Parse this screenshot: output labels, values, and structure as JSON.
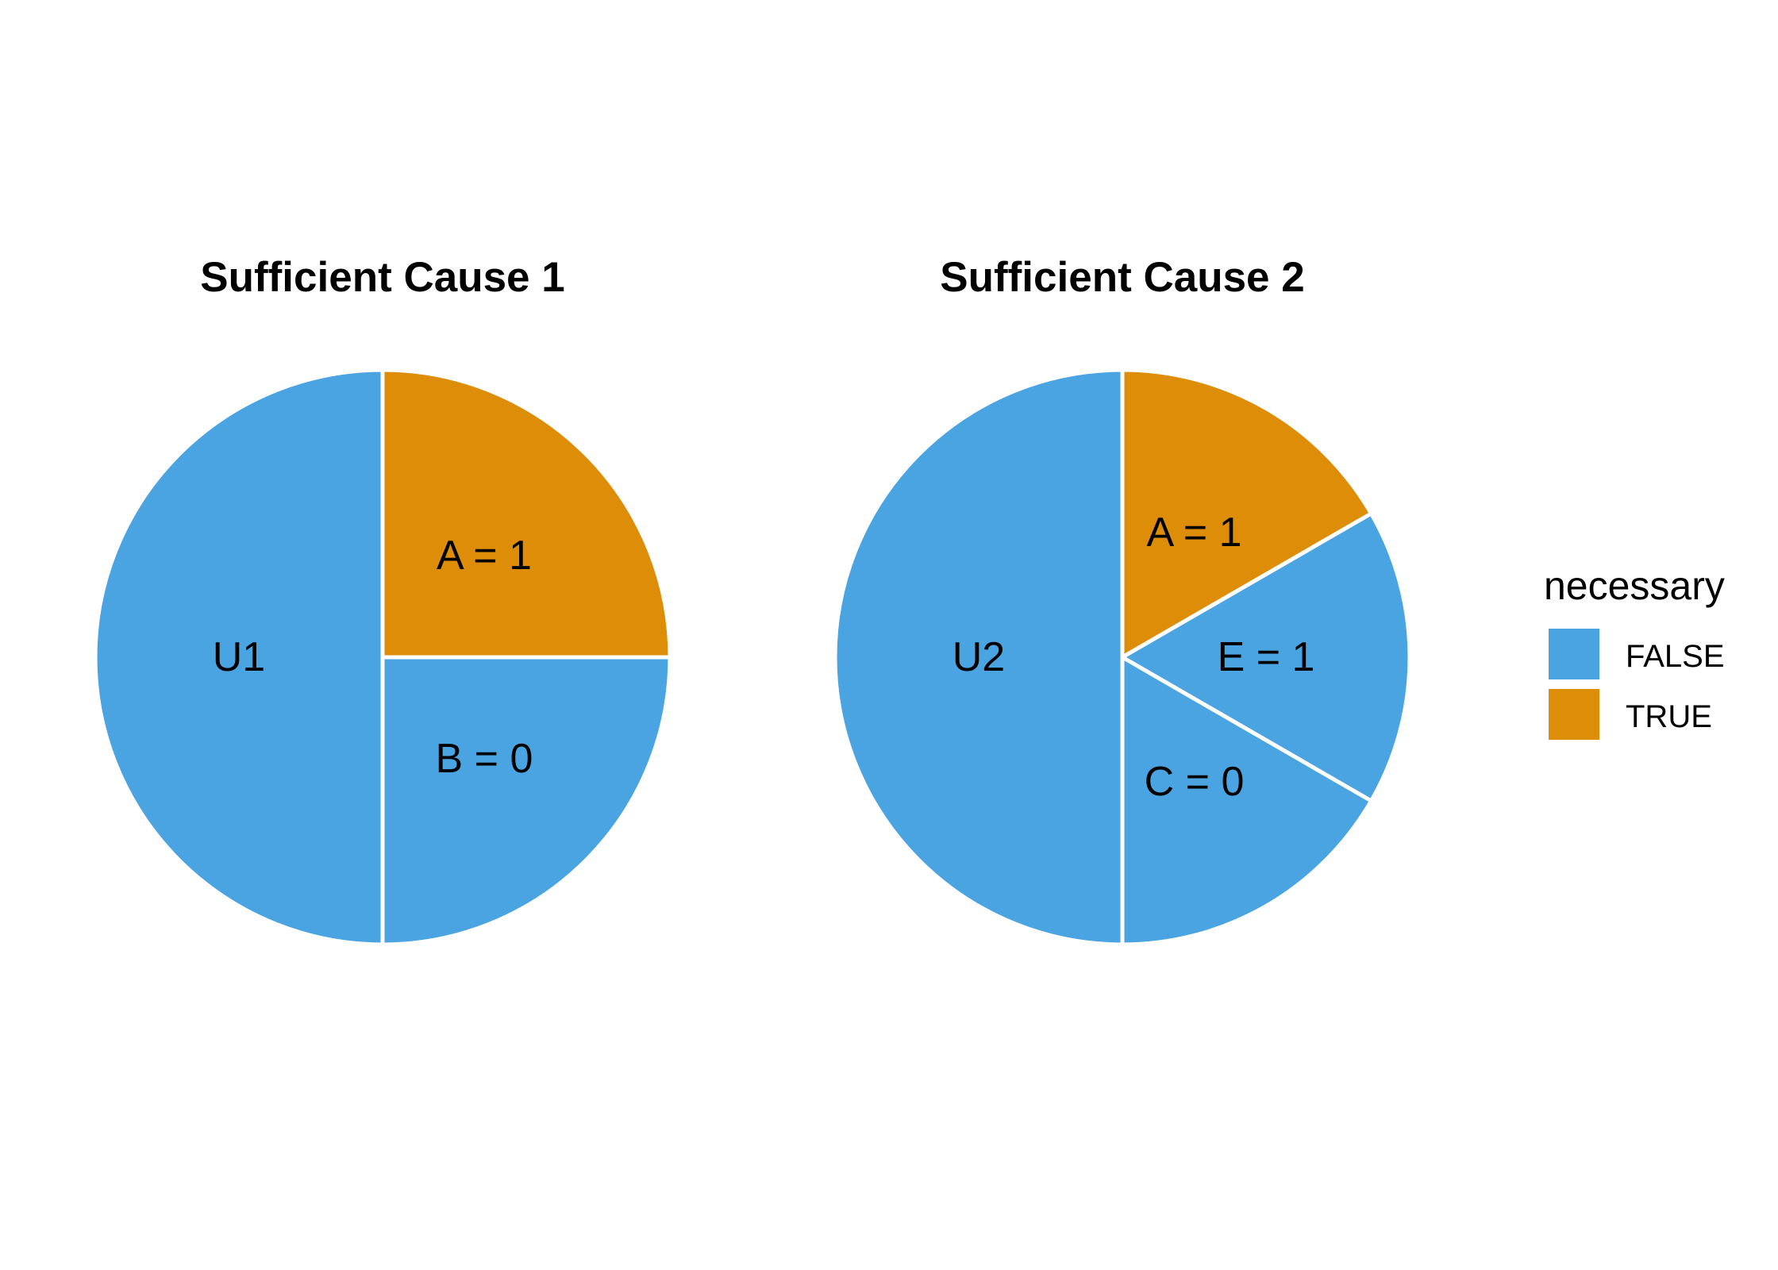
{
  "chart_data": [
    {
      "type": "pie",
      "title": "Sufficient Cause 1",
      "slices": [
        {
          "label": "A = 1",
          "value": 0.25,
          "necessary": "TRUE"
        },
        {
          "label": "B = 0",
          "value": 0.25,
          "necessary": "FALSE"
        },
        {
          "label": "U1",
          "value": 0.5,
          "necessary": "FALSE"
        }
      ]
    },
    {
      "type": "pie",
      "title": "Sufficient Cause 2",
      "slices": [
        {
          "label": "A = 1",
          "value": 0.16667,
          "necessary": "TRUE"
        },
        {
          "label": "E = 1",
          "value": 0.16667,
          "necessary": "FALSE"
        },
        {
          "label": "C = 0",
          "value": 0.16667,
          "necessary": "FALSE"
        },
        {
          "label": "U2",
          "value": 0.5,
          "necessary": "FALSE"
        }
      ]
    }
  ],
  "legend": {
    "title": "necessary",
    "position": "right",
    "entries": [
      {
        "label": "FALSE",
        "color": "#4aa4e2"
      },
      {
        "label": "TRUE",
        "color": "#de8d09"
      }
    ]
  },
  "colors": {
    "FALSE": "#4aa4e2",
    "TRUE": "#de8d09",
    "separator": "#ffffff"
  }
}
